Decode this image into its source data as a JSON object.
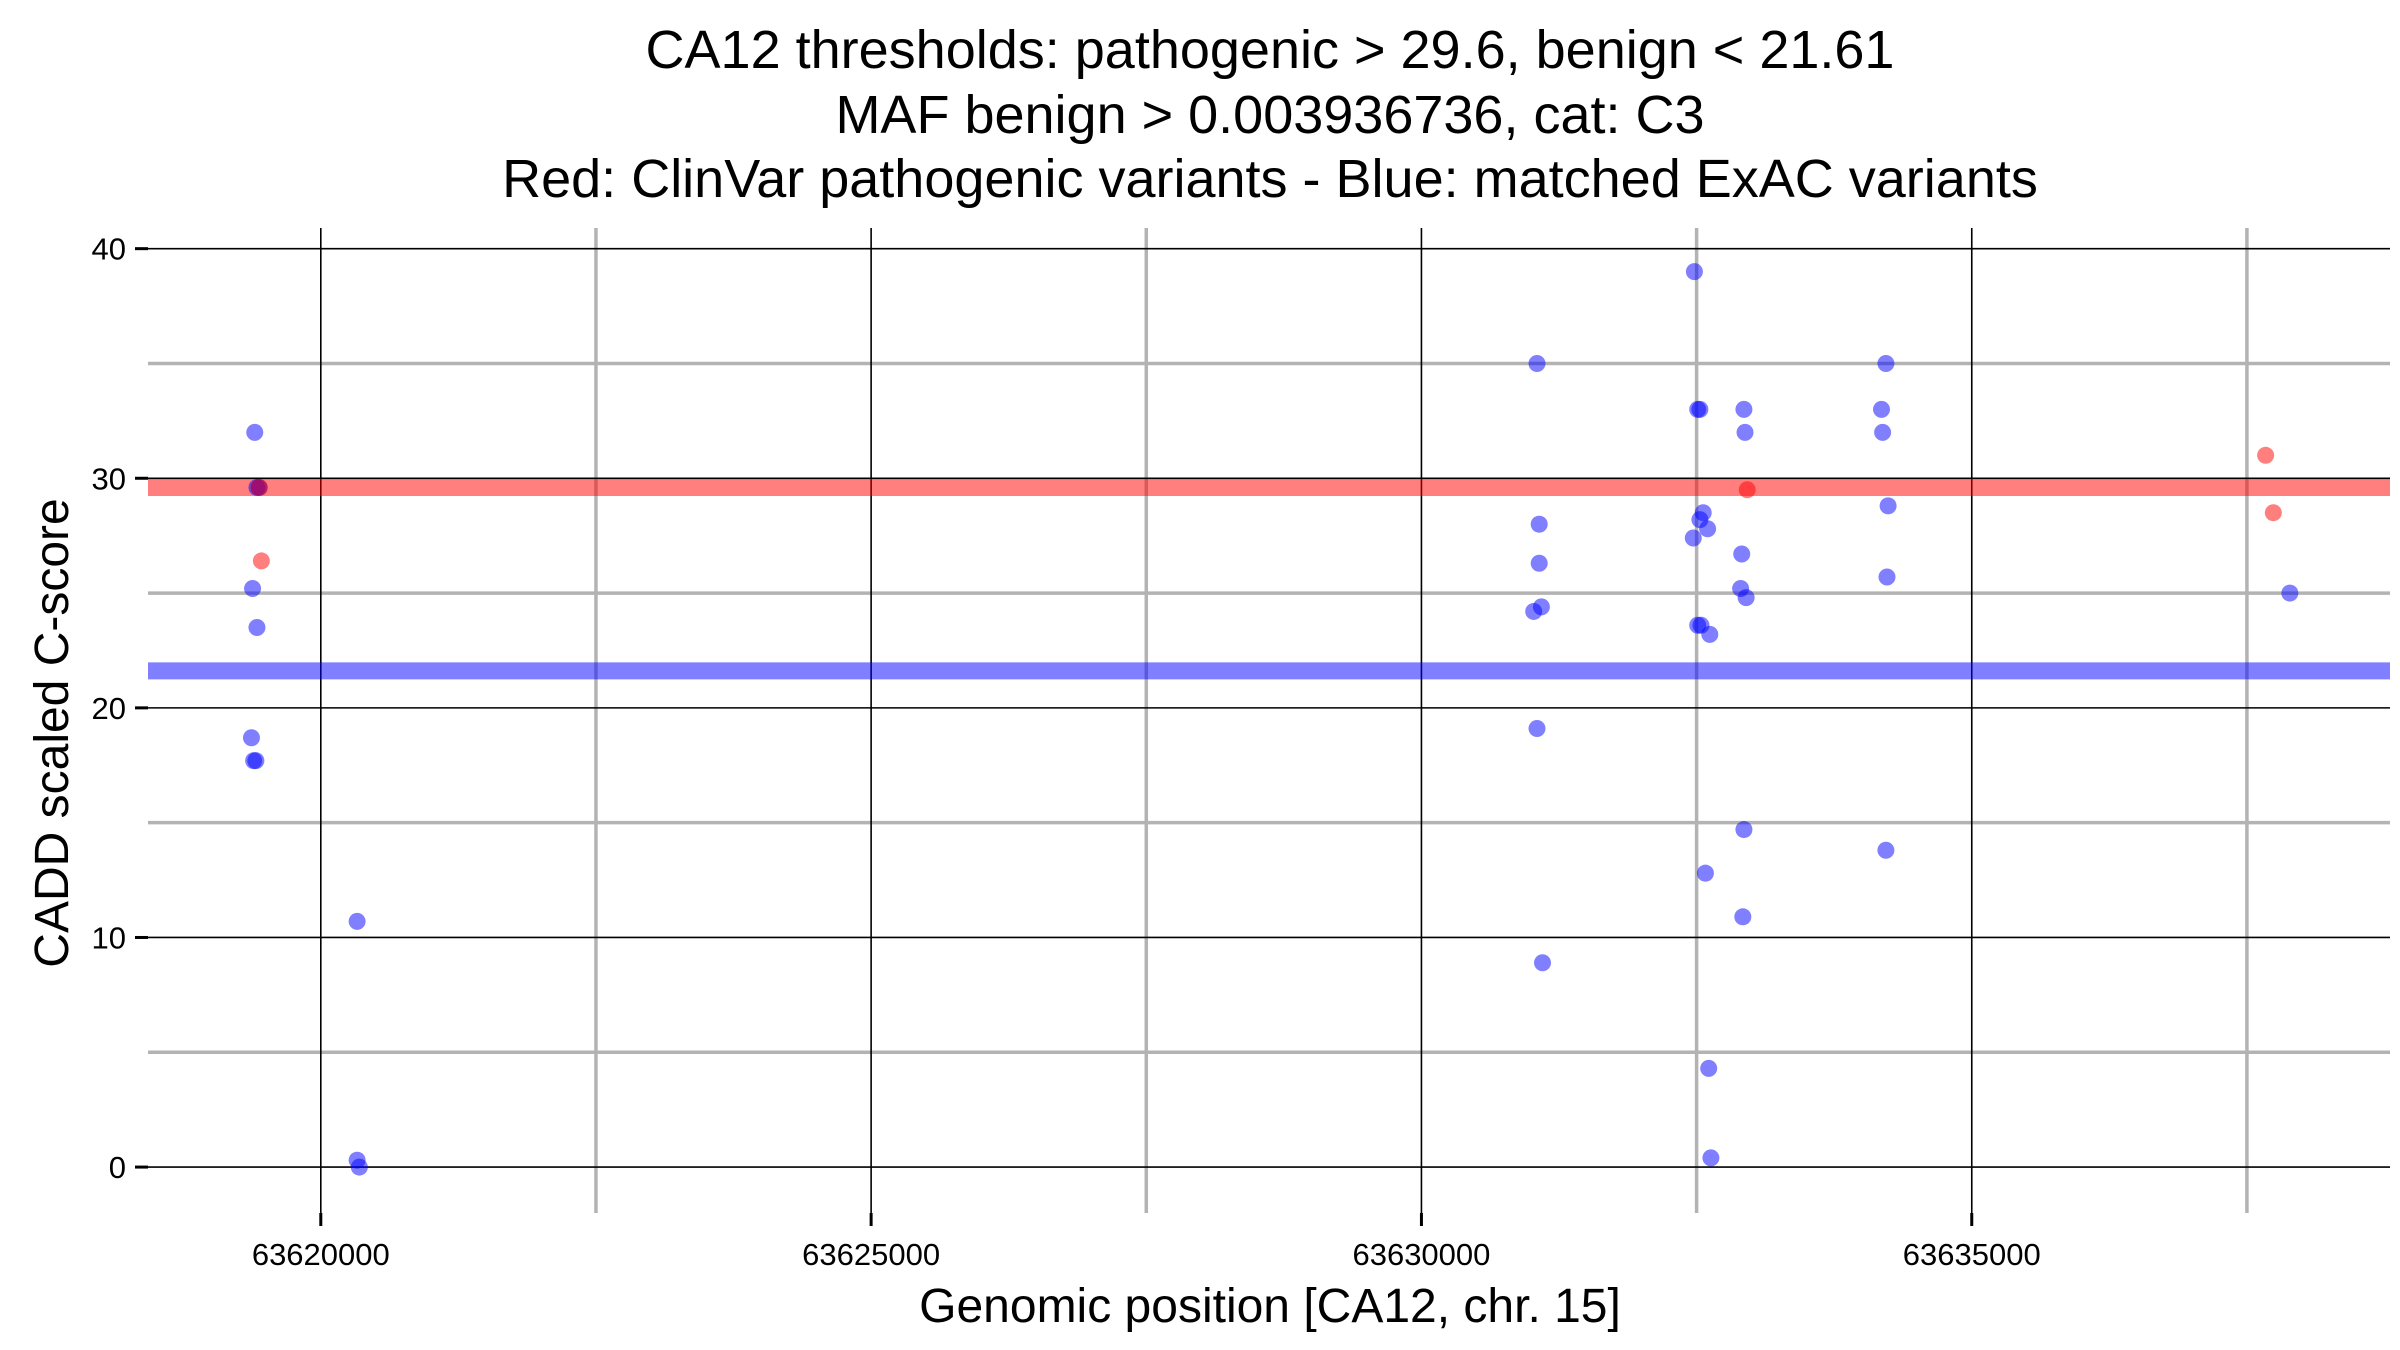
{
  "chart_data": {
    "type": "scatter",
    "title_lines": [
      "CA12 thresholds: pathogenic > 29.6, benign < 21.61",
      "MAF benign > 0.003936736, cat: C3",
      "Red: ClinVar pathogenic variants - Blue: matched ExAC variants"
    ],
    "xlabel": "Genomic position [CA12, chr. 15]",
    "ylabel": "CADD scaled C-score",
    "xlim": [
      63618430,
      63638800
    ],
    "ylim": [
      -2,
      40.9
    ],
    "x_ticks": [
      63620000,
      63625000,
      63630000,
      63635000
    ],
    "x_tick_labels": [
      "63620000",
      "63625000",
      "63630000",
      "63635000"
    ],
    "x_minor_gridlines": [
      63622500,
      63627500,
      63632500,
      63637500
    ],
    "y_ticks": [
      0,
      10,
      20,
      30,
      40
    ],
    "y_tick_labels": [
      "0",
      "10",
      "20",
      "30",
      "40"
    ],
    "y_minor_gridlines": [
      5,
      15,
      25,
      35
    ],
    "thresholds": [
      {
        "name": "pathogenic",
        "value": 29.6,
        "color": "#ff0000"
      },
      {
        "name": "benign",
        "value": 21.61,
        "color": "#0000ff"
      }
    ],
    "series": [
      {
        "name": "ClinVar pathogenic variants",
        "color": "#ff0000",
        "x": [
          63619440,
          63619460,
          63632960,
          63637670,
          63637740
        ],
        "y": [
          29.6,
          26.4,
          29.5,
          31.0,
          28.5
        ]
      },
      {
        "name": "matched ExAC variants",
        "color": "#0000ff",
        "x": [
          63619400,
          63619380,
          63619420,
          63619370,
          63619390,
          63619410,
          63619420,
          63619440,
          63620330,
          63620330,
          63620350,
          63631050,
          63631070,
          63631020,
          63631070,
          63631050,
          63631090,
          63631100,
          63632480,
          63632510,
          63632530,
          63632560,
          63632530,
          63632600,
          63632470,
          63632510,
          63632540,
          63632620,
          63632580,
          63632610,
          63632630,
          63632930,
          63632940,
          63632910,
          63632900,
          63632950,
          63632930,
          63632920,
          63634180,
          63634190,
          63634220,
          63634240,
          63634230,
          63634220,
          63637890
        ],
        "y": [
          32.0,
          25.2,
          23.5,
          18.7,
          17.7,
          17.7,
          29.6,
          29.6,
          10.7,
          0.3,
          0.0,
          35.0,
          28.0,
          24.2,
          26.3,
          19.1,
          24.4,
          8.9,
          39.0,
          33.0,
          33.0,
          28.5,
          28.2,
          27.8,
          27.4,
          23.6,
          23.6,
          23.2,
          12.8,
          4.3,
          0.4,
          33.0,
          32.0,
          26.7,
          25.2,
          24.8,
          14.7,
          10.9,
          33.0,
          32.0,
          35.0,
          28.8,
          25.7,
          13.8,
          25.0
        ]
      }
    ]
  }
}
